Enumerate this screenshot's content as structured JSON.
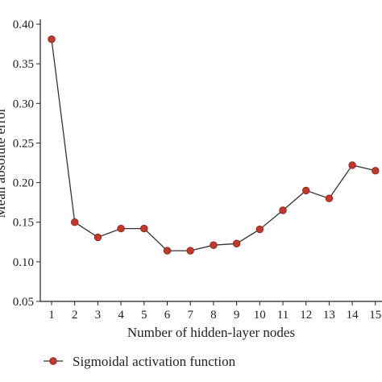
{
  "chart_data": {
    "type": "line",
    "title": "",
    "xlabel": "Number of hidden-layer nodes",
    "ylabel": "Mean absolute error",
    "x": [
      1,
      2,
      3,
      4,
      5,
      6,
      7,
      8,
      9,
      10,
      11,
      12,
      13,
      14,
      15
    ],
    "x_tick_labels": [
      "1",
      "2",
      "3",
      "4",
      "5",
      "6",
      "7",
      "8",
      "9",
      "10",
      "11",
      "12",
      "13",
      "14",
      "15"
    ],
    "series": [
      {
        "name": "Sigmoidal activation function",
        "color": "#c0392b",
        "values": [
          0.381,
          0.15,
          0.131,
          0.142,
          0.142,
          0.114,
          0.114,
          0.121,
          0.123,
          0.141,
          0.165,
          0.19,
          0.18,
          0.222,
          0.215
        ]
      }
    ],
    "ylim": [
      0.05,
      0.4
    ],
    "y_ticks": [
      "0.05",
      "0.10",
      "0.15",
      "0.20",
      "0.25",
      "0.30",
      "0.35",
      "0.40"
    ],
    "grid": false,
    "legend_position": "bottom-left"
  }
}
